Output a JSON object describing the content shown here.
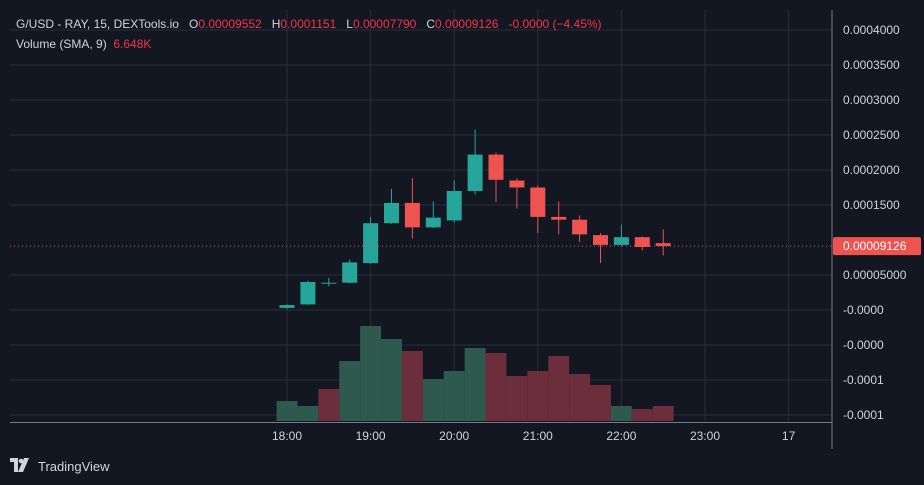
{
  "legend": {
    "symbol": "G/USD - RAY, 15, DEXTools.io",
    "o_label": "O",
    "o_value": "0.00009552",
    "h_label": "H",
    "h_value": "0.0001151",
    "l_label": "L",
    "l_value": "0.00007790",
    "c_label": "C",
    "c_value": "0.00009126",
    "change": "-0.0000 (−4.45%)",
    "volume_label": "Volume (SMA, 9)",
    "volume_value": "6.648K"
  },
  "brand": {
    "name": "TradingView",
    "icon": "tradingview-logo-icon"
  },
  "colors": {
    "up": "#26a69a",
    "down": "#ef5350",
    "vol_up": "#2e5a4e",
    "vol_down": "#6b2e3a",
    "bg": "#131722",
    "grid": "#2a2e39",
    "text": "#d1d4dc"
  },
  "chart_data": {
    "type": "candlestick",
    "price_axis": {
      "ticks": [
        {
          "v": 0.0004,
          "label": "0.0004000"
        },
        {
          "v": 0.00035,
          "label": "0.0003500"
        },
        {
          "v": 0.0003,
          "label": "0.0003000"
        },
        {
          "v": 0.00025,
          "label": "0.0002500"
        },
        {
          "v": 0.0002,
          "label": "0.0002000"
        },
        {
          "v": 0.00015,
          "label": "0.0001500"
        },
        {
          "v": 5e-05,
          "label": "0.00005000"
        },
        {
          "v": 0.0,
          "label": "-0.0000"
        },
        {
          "v": -5e-05,
          "label": "-0.0000"
        },
        {
          "v": -0.0001,
          "label": "-0.0001"
        },
        {
          "v": -0.00015,
          "label": "-0.0001"
        }
      ],
      "last_price": 9.126e-05,
      "last_price_label": "0.00009126"
    },
    "time_axis": {
      "labels": [
        "18:00",
        "19:00",
        "20:00",
        "21:00",
        "22:00",
        "23:00",
        "17"
      ],
      "label_bar_index": [
        0,
        4,
        8,
        12,
        16,
        20,
        24
      ]
    },
    "candles": [
      {
        "o": 3e-06,
        "h": 8e-06,
        "l": 1e-06,
        "c": 7e-06
      },
      {
        "o": 8e-06,
        "h": 4.2e-05,
        "l": 7e-06,
        "c": 4e-05
      },
      {
        "o": 3.9e-05,
        "h": 4.6e-05,
        "l": 3.4e-05,
        "c": 3.9e-05
      },
      {
        "o": 3.9e-05,
        "h": 7.2e-05,
        "l": 3.8e-05,
        "c": 6.8e-05
      },
      {
        "o": 6.7e-05,
        "h": 0.000133,
        "l": 6.6e-05,
        "c": 0.000124
      },
      {
        "o": 0.000124,
        "h": 0.000173,
        "l": 0.000123,
        "c": 0.000153
      },
      {
        "o": 0.000153,
        "h": 0.000188,
        "l": 0.000102,
        "c": 0.000118
      },
      {
        "o": 0.000118,
        "h": 0.000155,
        "l": 0.000117,
        "c": 0.000132
      },
      {
        "o": 0.000128,
        "h": 0.000185,
        "l": 0.000125,
        "c": 0.00017
      },
      {
        "o": 0.00017,
        "h": 0.000258,
        "l": 0.000165,
        "c": 0.000222
      },
      {
        "o": 0.000222,
        "h": 0.000225,
        "l": 0.000154,
        "c": 0.000186
      },
      {
        "o": 0.000185,
        "h": 0.000188,
        "l": 0.000145,
        "c": 0.000175
      },
      {
        "o": 0.000175,
        "h": 0.000178,
        "l": 0.00011,
        "c": 0.000133
      },
      {
        "o": 0.000133,
        "h": 0.000155,
        "l": 0.000108,
        "c": 0.000129
      },
      {
        "o": 0.000129,
        "h": 0.000135,
        "l": 9.7e-05,
        "c": 0.000108
      },
      {
        "o": 0.000107,
        "h": 0.00011,
        "l": 6.7e-05,
        "c": 9.3e-05
      },
      {
        "o": 9.3e-05,
        "h": 0.000122,
        "l": 9.1e-05,
        "c": 0.000104
      },
      {
        "o": 0.000104,
        "h": 0.000105,
        "l": 8.5e-05,
        "c": 9e-05
      },
      {
        "o": 9.55e-05,
        "h": 0.0001151,
        "l": 7.79e-05,
        "c": 9.126e-05
      }
    ],
    "volume": [
      {
        "v": 20,
        "up": true
      },
      {
        "v": 15,
        "up": true
      },
      {
        "v": 32,
        "up": false
      },
      {
        "v": 60,
        "up": true
      },
      {
        "v": 95,
        "up": true
      },
      {
        "v": 82,
        "up": true
      },
      {
        "v": 70,
        "up": false
      },
      {
        "v": 42,
        "up": true
      },
      {
        "v": 50,
        "up": true
      },
      {
        "v": 73,
        "up": true
      },
      {
        "v": 68,
        "up": false
      },
      {
        "v": 45,
        "up": false
      },
      {
        "v": 50,
        "up": false
      },
      {
        "v": 65,
        "up": false
      },
      {
        "v": 47,
        "up": false
      },
      {
        "v": 36,
        "up": false
      },
      {
        "v": 15,
        "up": true
      },
      {
        "v": 12,
        "up": false
      },
      {
        "v": 15,
        "up": false
      }
    ]
  }
}
